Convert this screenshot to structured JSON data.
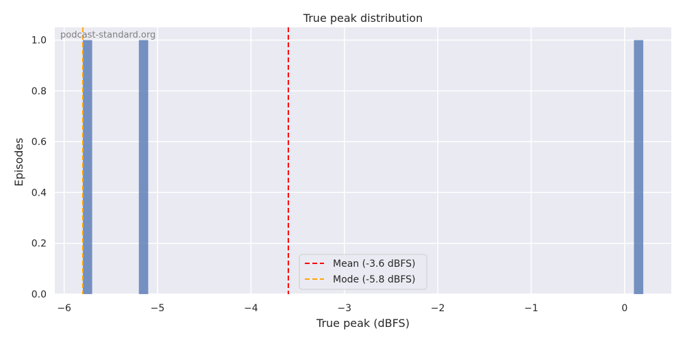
{
  "watermark": "podcast-standard.org",
  "chart_data": {
    "type": "bar",
    "title": "True peak distribution",
    "xlabel": "True peak (dBFS)",
    "ylabel": "Episodes",
    "xlim": [
      -6.1,
      0.5
    ],
    "ylim": [
      0,
      1.05
    ],
    "x_ticks": [
      -6,
      -5,
      -4,
      -3,
      -2,
      -1,
      0
    ],
    "x_tick_labels": [
      "−6",
      "−5",
      "−4",
      "−3",
      "−2",
      "−1",
      "0"
    ],
    "y_ticks": [
      0.0,
      0.2,
      0.4,
      0.6,
      0.8,
      1.0
    ],
    "y_tick_labels": [
      "0.0",
      "0.2",
      "0.4",
      "0.6",
      "0.8",
      "1.0"
    ],
    "bins": [
      {
        "x0": -5.8,
        "x1": -5.7,
        "count": 1
      },
      {
        "x0": -5.2,
        "x1": -5.1,
        "count": 1
      },
      {
        "x0": 0.1,
        "x1": 0.2,
        "count": 1
      }
    ],
    "bar_color": "#4c72b0",
    "grid": true,
    "background": "#eaeaf2",
    "lines": [
      {
        "label": "Mean (-3.6 dBFS)",
        "x": -3.6,
        "color": "#ff0000",
        "style": "dashed"
      },
      {
        "label": "Mode (-5.8 dBFS)",
        "x": -5.8,
        "color": "#ffa500",
        "style": "dashed"
      }
    ],
    "legend_position": "bottom-center"
  }
}
